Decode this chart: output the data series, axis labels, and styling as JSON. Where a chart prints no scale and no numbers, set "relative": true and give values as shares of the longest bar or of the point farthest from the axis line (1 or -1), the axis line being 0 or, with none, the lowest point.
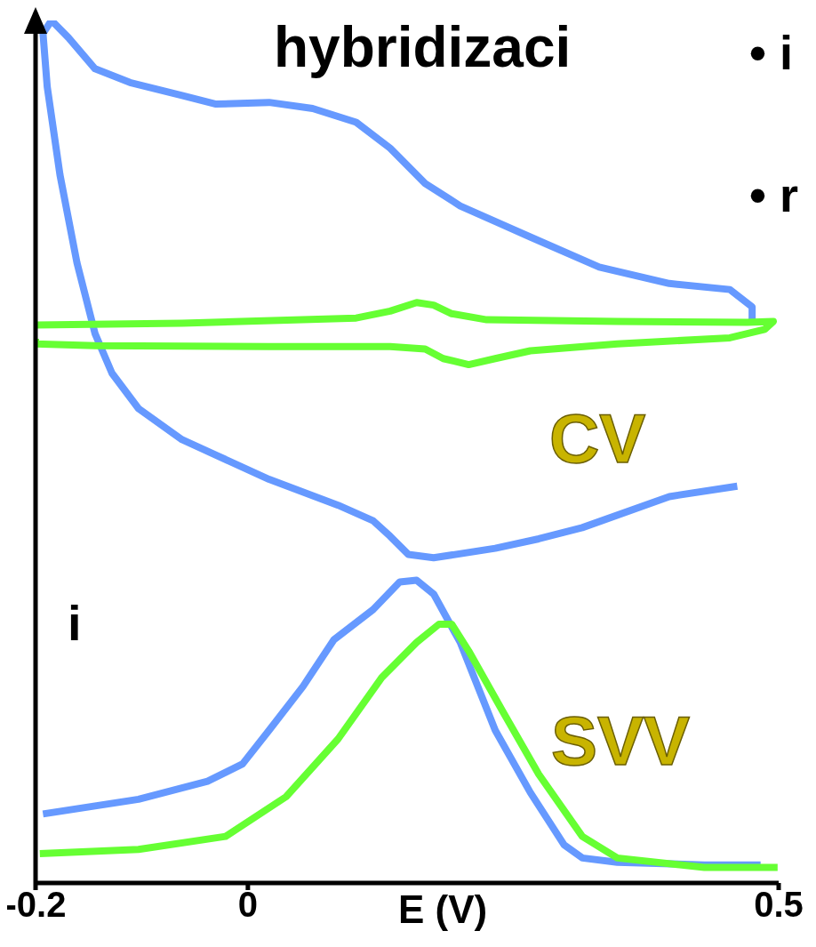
{
  "chart_data": {
    "type": "line",
    "title": "hybridizaci",
    "xlabel": "E (V)",
    "ylabel": "i",
    "relative": true,
    "legend": false,
    "grid": false,
    "marker": "none",
    "xlim": [
      -0.2,
      0.5
    ],
    "xticks": [
      -0.2,
      0,
      0.5
    ],
    "annotations": [
      "CV",
      "SVV",
      "• i",
      "• r"
    ],
    "series": [
      {
        "color": "#6699ff",
        "x": [
          0.461,
          0.397,
          0.315,
          0.274,
          0.233,
          0.175,
          0.151,
          0.134,
          0.118,
          0.085,
          0.02,
          -0.062,
          -0.103,
          -0.128,
          -0.144,
          -0.161,
          -0.177,
          -0.189,
          -0.193,
          -0.185,
          -0.169,
          -0.144,
          -0.111,
          -0.062,
          -0.03,
          0.02,
          0.061,
          0.102,
          0.134,
          0.167,
          0.2,
          0.266,
          0.331,
          0.397,
          0.454,
          0.475,
          0.475
        ],
        "values": [
          0.46,
          0.448,
          0.412,
          0.399,
          0.388,
          0.377,
          0.381,
          0.402,
          0.42,
          0.438,
          0.468,
          0.514,
          0.55,
          0.591,
          0.637,
          0.719,
          0.821,
          0.923,
          0.985,
          1.0,
          0.98,
          0.944,
          0.928,
          0.913,
          0.903,
          0.905,
          0.898,
          0.882,
          0.852,
          0.811,
          0.785,
          0.749,
          0.714,
          0.695,
          0.688,
          0.668,
          0.649
        ]
      },
      {
        "color": "#66ff33",
        "x": [
          -0.2,
          -0.062,
          0.102,
          0.134,
          0.159,
          0.175,
          0.192,
          0.225,
          0.348,
          0.47,
          0.495,
          0.487,
          0.454,
          0.348,
          0.266,
          0.233,
          0.208,
          0.184,
          0.167,
          0.134,
          0.02,
          -0.144,
          -0.2,
          -0.2
        ],
        "values": [
          0.647,
          0.649,
          0.655,
          0.663,
          0.673,
          0.67,
          0.66,
          0.653,
          0.651,
          0.65,
          0.651,
          0.642,
          0.632,
          0.625,
          0.617,
          0.608,
          0.601,
          0.608,
          0.619,
          0.622,
          0.622,
          0.623,
          0.625,
          0.631
        ]
      },
      {
        "color": "#6699ff",
        "x": [
          -0.193,
          -0.103,
          -0.038,
          -0.005,
          0.02,
          0.052,
          0.081,
          0.118,
          0.143,
          0.159,
          0.175,
          0.2,
          0.233,
          0.266,
          0.298,
          0.315,
          0.348,
          0.43,
          0.483
        ],
        "values": [
          0.08,
          0.097,
          0.118,
          0.138,
          0.177,
          0.228,
          0.282,
          0.317,
          0.349,
          0.351,
          0.335,
          0.279,
          0.177,
          0.105,
          0.044,
          0.029,
          0.024,
          0.021,
          0.021
        ]
      },
      {
        "color": "#66ff33",
        "x": [
          -0.196,
          -0.103,
          -0.021,
          0.036,
          0.085,
          0.126,
          0.159,
          0.18,
          0.192,
          0.208,
          0.241,
          0.274,
          0.315,
          0.348,
          0.43,
          0.499
        ],
        "values": [
          0.034,
          0.039,
          0.054,
          0.1,
          0.167,
          0.238,
          0.279,
          0.3,
          0.3,
          0.269,
          0.197,
          0.126,
          0.054,
          0.029,
          0.018,
          0.018
        ]
      }
    ]
  }
}
